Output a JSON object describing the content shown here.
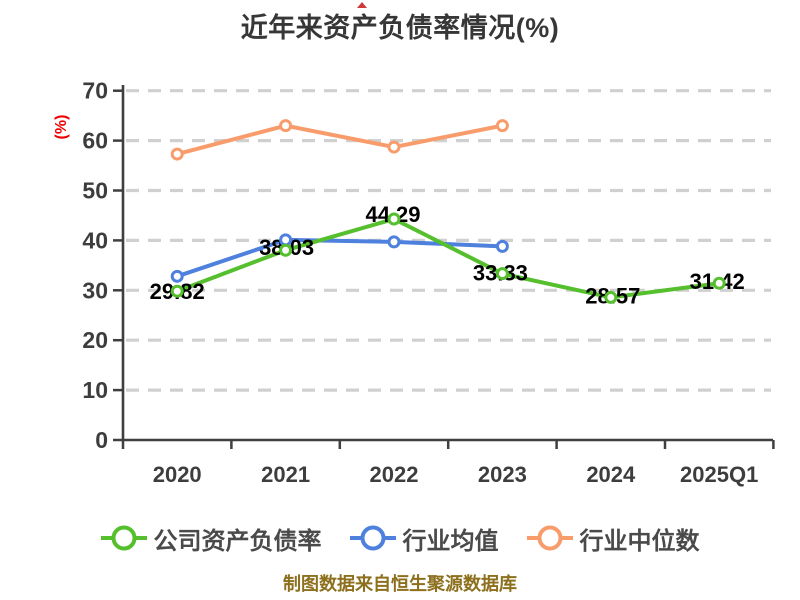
{
  "title": "近年来资产负债率情况(%)",
  "chart_data": {
    "type": "line",
    "title": "近年来资产负债率情况(%)",
    "ylabel": "(%)",
    "xlabel": "",
    "ylim": [
      0,
      70
    ],
    "ytick_step": 10,
    "yticks": [
      0,
      10,
      20,
      30,
      40,
      50,
      60,
      70
    ],
    "grid": "horizontal-dashed",
    "legend_position": "bottom",
    "categories": [
      "2020",
      "2021",
      "2022",
      "2023",
      "2024",
      "2025Q1"
    ],
    "series": [
      {
        "id": "company-debt-ratio",
        "name": "公司资产负债率",
        "color": "#55bf2d",
        "values": [
          29.82,
          38.03,
          44.29,
          33.33,
          28.57,
          31.42
        ],
        "data_labels": [
          "29.82",
          "38.03",
          "44.29",
          "33.33",
          "28.57",
          "31.42"
        ]
      },
      {
        "id": "industry-average",
        "name": "行业均值",
        "color": "#4e80dd",
        "values": [
          32.8,
          40.1,
          39.7,
          38.8
        ],
        "data_labels": null
      },
      {
        "id": "industry-median",
        "name": "行业中位数",
        "color": "#f99c6c",
        "values": [
          57.3,
          63.0,
          58.7,
          63.0
        ],
        "data_labels": null
      }
    ],
    "source_note": "制图数据来自恒生聚源数据库"
  },
  "colors": {
    "background": "#ffffff",
    "axis": "#3f3f3f",
    "grid": "#d0d0d0",
    "tick_label": "#3d3d3d",
    "data_label": "#000000",
    "title": "#373737",
    "legend_text": "#4a4a4a",
    "ylabel": "#ee0000",
    "source_note": "#8d701d",
    "marker_fill": "#ffffff"
  }
}
